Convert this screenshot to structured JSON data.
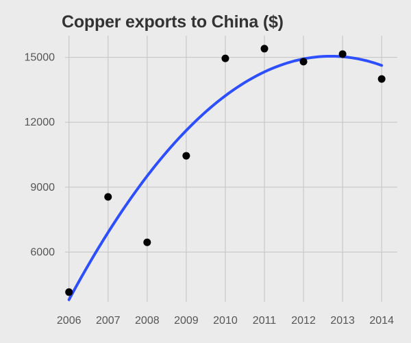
{
  "chart_data": {
    "type": "scatter",
    "title": "Copper exports to China ($)",
    "xlabel": "",
    "ylabel": "",
    "x": [
      2006,
      2007,
      2008,
      2009,
      2010,
      2011,
      2012,
      2013,
      2014
    ],
    "y": [
      4150,
      8550,
      6450,
      10450,
      14950,
      15400,
      14800,
      15150,
      14000
    ],
    "x_ticks": [
      "2006",
      "2007",
      "2008",
      "2009",
      "2010",
      "2011",
      "2012",
      "2013",
      "2014"
    ],
    "y_ticks": [
      "6000",
      "9000",
      "12000",
      "15000"
    ],
    "xlim": [
      2005.9,
      2014.4
    ],
    "ylim": [
      3700,
      16000
    ],
    "grid": true,
    "trend_line": {
      "type": "smooth-fit",
      "start": [
        2006,
        3800
      ],
      "end": [
        2014,
        14600
      ]
    },
    "colors": {
      "background": "#ebebeb",
      "points": "#000000",
      "trend": "#2e4fff",
      "grid": "#c8c8c8",
      "title": "#333333"
    }
  }
}
